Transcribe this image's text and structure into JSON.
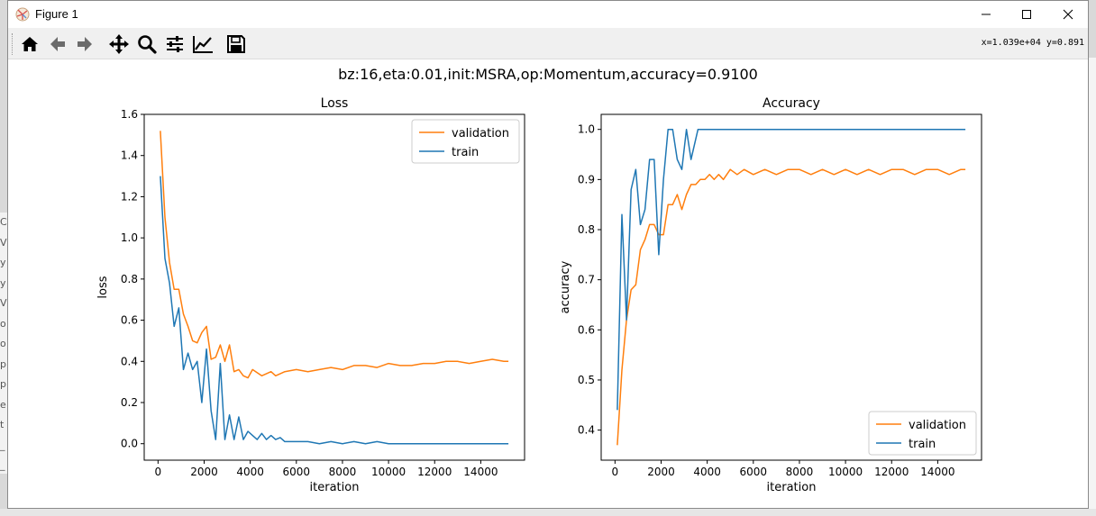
{
  "window": {
    "title": "Figure 1",
    "coords_readout": "x=1.039e+04 y=0.891"
  },
  "toolbar": {
    "tools": [
      "home-icon",
      "back-arrow-icon",
      "forward-arrow-icon",
      "pan-icon",
      "zoom-icon",
      "subplots-config-icon",
      "edit-axes-icon",
      "save-icon"
    ]
  },
  "figure": {
    "suptitle": "bz:16,eta:0.01,init:MSRA,op:Momentum,accuracy=0.9100"
  },
  "colors": {
    "validation": "#ff7f0e",
    "train": "#1f77b4"
  },
  "chart_data": [
    {
      "type": "line",
      "title": "Loss",
      "xlabel": "iteration",
      "ylabel": "loss",
      "xlim": [
        -600,
        15900
      ],
      "ylim": [
        -0.08,
        1.6
      ],
      "xticks": [
        0,
        2000,
        4000,
        6000,
        8000,
        10000,
        12000,
        14000
      ],
      "yticks": [
        0.0,
        0.2,
        0.4,
        0.6,
        0.8,
        1.0,
        1.2,
        1.4,
        1.6
      ],
      "ytick_labels": [
        "0.0",
        "0.2",
        "0.4",
        "0.6",
        "0.8",
        "1.0",
        "1.2",
        "1.4",
        "1.6"
      ],
      "grid": false,
      "legend": "upper right",
      "series": [
        {
          "name": "validation",
          "color": "#ff7f0e",
          "x": [
            100,
            300,
            500,
            700,
            900,
            1100,
            1300,
            1500,
            1700,
            1900,
            2100,
            2300,
            2500,
            2700,
            2900,
            3100,
            3300,
            3500,
            3700,
            3900,
            4100,
            4500,
            4900,
            5100,
            5500,
            6000,
            6500,
            7000,
            7500,
            8000,
            8500,
            9000,
            9500,
            10000,
            10500,
            11000,
            11500,
            12000,
            12500,
            13000,
            13500,
            14000,
            14500,
            15000,
            15200
          ],
          "y": [
            1.52,
            1.1,
            0.88,
            0.75,
            0.75,
            0.63,
            0.57,
            0.5,
            0.49,
            0.54,
            0.57,
            0.41,
            0.42,
            0.48,
            0.4,
            0.48,
            0.35,
            0.36,
            0.33,
            0.32,
            0.36,
            0.33,
            0.35,
            0.33,
            0.35,
            0.36,
            0.35,
            0.36,
            0.37,
            0.36,
            0.38,
            0.38,
            0.37,
            0.39,
            0.38,
            0.38,
            0.39,
            0.39,
            0.4,
            0.4,
            0.39,
            0.4,
            0.41,
            0.4,
            0.4
          ]
        },
        {
          "name": "train",
          "color": "#1f77b4",
          "x": [
            100,
            300,
            500,
            700,
            900,
            1100,
            1300,
            1500,
            1700,
            1900,
            2100,
            2300,
            2500,
            2700,
            2900,
            3100,
            3300,
            3500,
            3700,
            3900,
            4100,
            4300,
            4500,
            4700,
            4900,
            5100,
            5300,
            5500,
            6000,
            6500,
            7000,
            7500,
            8000,
            8500,
            9000,
            9500,
            10000,
            10500,
            11000,
            11500,
            12000,
            12500,
            13000,
            13500,
            14000,
            14500,
            15000,
            15200
          ],
          "y": [
            1.3,
            0.9,
            0.78,
            0.57,
            0.66,
            0.36,
            0.44,
            0.36,
            0.4,
            0.2,
            0.46,
            0.16,
            0.02,
            0.39,
            0.02,
            0.14,
            0.02,
            0.13,
            0.02,
            0.06,
            0.04,
            0.02,
            0.05,
            0.02,
            0.04,
            0.02,
            0.03,
            0.01,
            0.01,
            0.01,
            0.0,
            0.01,
            0.0,
            0.01,
            0.0,
            0.01,
            0.0,
            0.0,
            0.0,
            0.0,
            0.0,
            0.0,
            0.0,
            0.0,
            0.0,
            0.0,
            0.0,
            0.0
          ]
        }
      ]
    },
    {
      "type": "line",
      "title": "Accuracy",
      "xlabel": "iteration",
      "ylabel": "accuracy",
      "xlim": [
        -600,
        15900
      ],
      "ylim": [
        0.34,
        1.03
      ],
      "xticks": [
        0,
        2000,
        4000,
        6000,
        8000,
        10000,
        12000,
        14000
      ],
      "yticks": [
        0.4,
        0.5,
        0.6,
        0.7,
        0.8,
        0.9,
        1.0
      ],
      "ytick_labels": [
        "0.4",
        "0.5",
        "0.6",
        "0.7",
        "0.8",
        "0.9",
        "1.0"
      ],
      "grid": false,
      "legend": "lower right",
      "series": [
        {
          "name": "validation",
          "color": "#ff7f0e",
          "x": [
            100,
            300,
            500,
            700,
            900,
            1100,
            1300,
            1500,
            1700,
            1900,
            2100,
            2300,
            2500,
            2700,
            2900,
            3100,
            3300,
            3500,
            3700,
            3900,
            4100,
            4300,
            4500,
            4700,
            5000,
            5300,
            5600,
            6000,
            6500,
            7000,
            7500,
            8000,
            8500,
            9000,
            9500,
            10000,
            10500,
            11000,
            11500,
            12000,
            12500,
            13000,
            13500,
            14000,
            14500,
            15000,
            15200
          ],
          "y": [
            0.37,
            0.52,
            0.62,
            0.68,
            0.69,
            0.76,
            0.78,
            0.81,
            0.81,
            0.79,
            0.79,
            0.85,
            0.85,
            0.87,
            0.84,
            0.87,
            0.89,
            0.89,
            0.9,
            0.9,
            0.91,
            0.9,
            0.91,
            0.9,
            0.92,
            0.91,
            0.92,
            0.91,
            0.92,
            0.91,
            0.92,
            0.92,
            0.91,
            0.92,
            0.91,
            0.92,
            0.91,
            0.92,
            0.91,
            0.92,
            0.92,
            0.91,
            0.92,
            0.92,
            0.91,
            0.92,
            0.92
          ]
        },
        {
          "name": "train",
          "color": "#1f77b4",
          "x": [
            100,
            300,
            500,
            700,
            900,
            1100,
            1300,
            1500,
            1700,
            1900,
            2100,
            2300,
            2500,
            2700,
            2900,
            3100,
            3300,
            3600,
            4000,
            5000,
            6000,
            8000,
            10000,
            12000,
            14000,
            15200
          ],
          "y": [
            0.44,
            0.83,
            0.62,
            0.88,
            0.92,
            0.81,
            0.84,
            0.94,
            0.94,
            0.75,
            0.9,
            1.0,
            1.0,
            0.94,
            0.92,
            1.0,
            0.94,
            1.0,
            1.0,
            1.0,
            1.0,
            1.0,
            1.0,
            1.0,
            1.0,
            1.0
          ]
        }
      ]
    }
  ]
}
